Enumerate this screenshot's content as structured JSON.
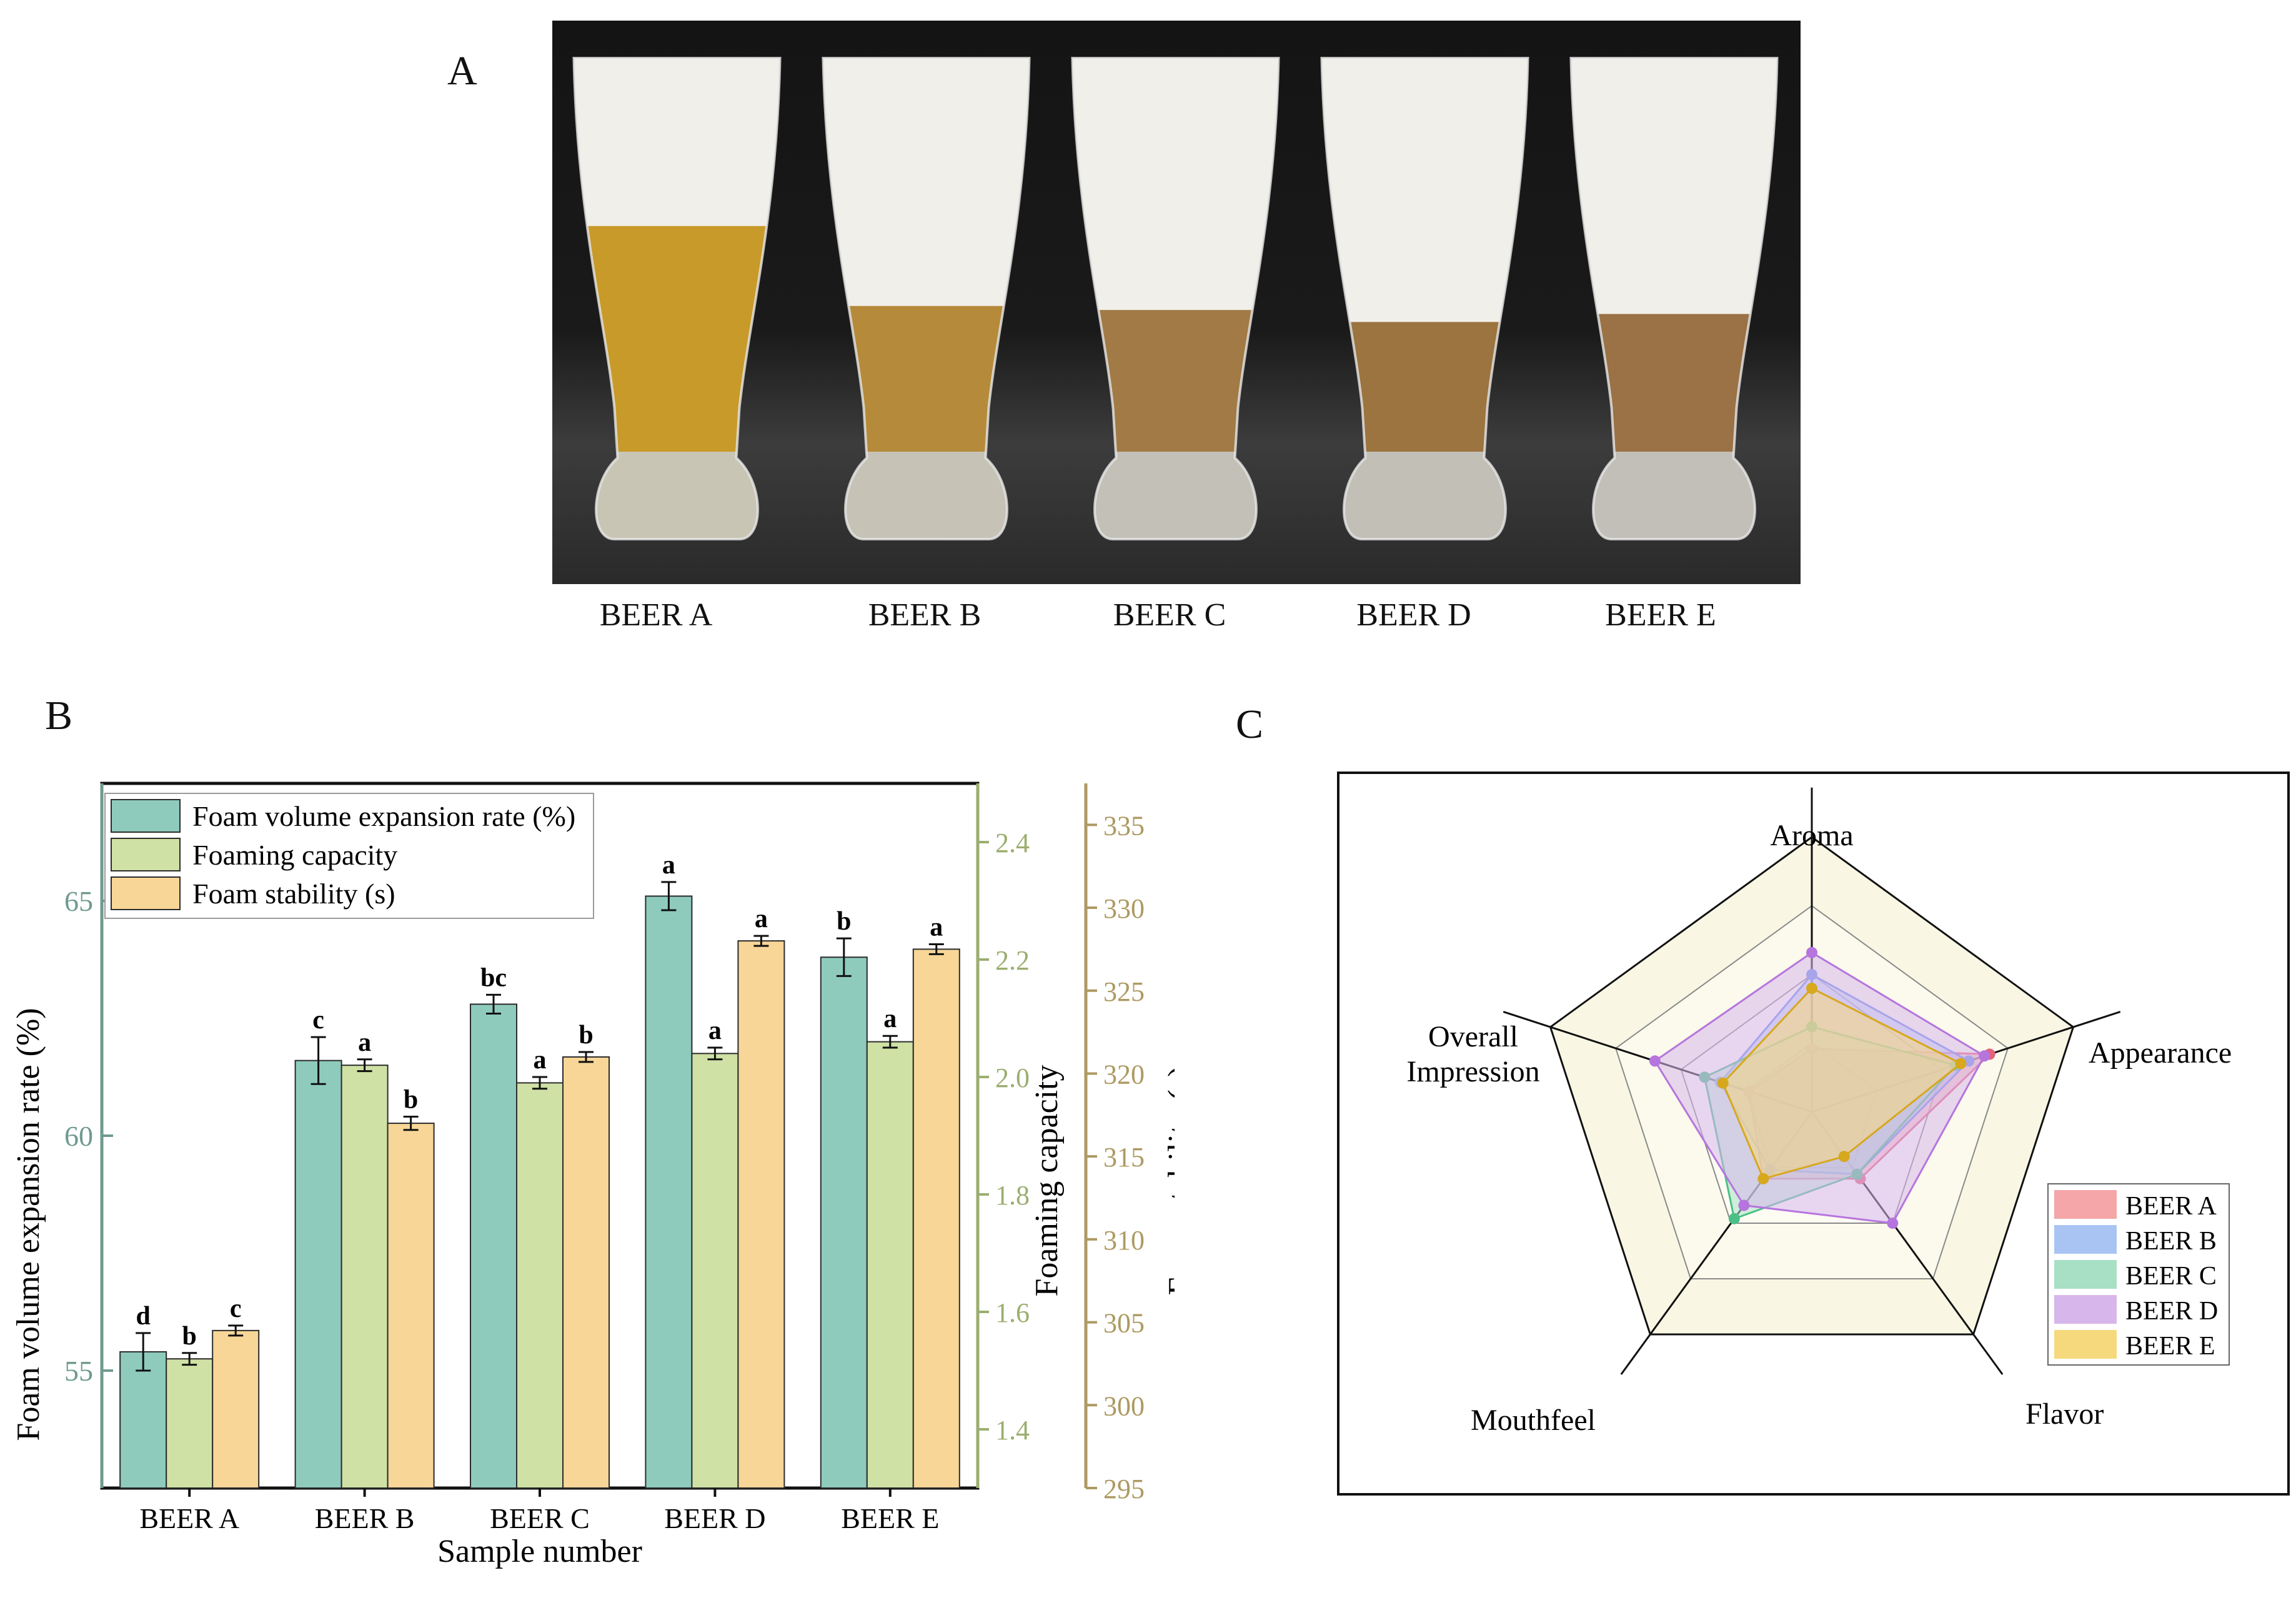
{
  "panels": {
    "a": "A",
    "b": "B",
    "c": "C"
  },
  "photo": {
    "labels": [
      "BEER A",
      "BEER B",
      "BEER C",
      "BEER D",
      "BEER E"
    ],
    "foam_fraction": [
      0.42,
      0.62,
      0.63,
      0.66,
      0.64
    ]
  },
  "chart_data": [
    {
      "type": "bar",
      "title": "",
      "xlabel": "Sample number",
      "ylabel": "Foam volume expansion rate (%)",
      "categories": [
        "BEER A",
        "BEER B",
        "BEER C",
        "BEER D",
        "BEER E"
      ],
      "axes": {
        "left": {
          "label": "Foam volume expansion rate (%)",
          "ylim": [
            52.5,
            67.5
          ],
          "ticks": [
            55,
            60,
            65
          ],
          "color": "#6f9a8f"
        },
        "right1": {
          "label": "Foaming capacity",
          "ylim": [
            1.3,
            2.5
          ],
          "ticks": [
            "1.4",
            "1.6",
            "1.8",
            "2.0",
            "2.2",
            "2.4"
          ],
          "color": "#9bae6f"
        },
        "right2": {
          "label": "Foam stability (s)",
          "ylim": [
            295,
            337.5
          ],
          "ticks": [
            295,
            300,
            305,
            310,
            315,
            320,
            325,
            330,
            335
          ],
          "color": "#ad9a62"
        }
      },
      "series": [
        {
          "name": "Foam volume expansion rate (%)",
          "axis": "left",
          "color": "#8ecbbd",
          "values": [
            55.4,
            61.6,
            62.8,
            65.1,
            63.8
          ],
          "errors": [
            0.4,
            0.5,
            0.2,
            0.3,
            0.4
          ],
          "letters": [
            "d",
            "c",
            "bc",
            "a",
            "b"
          ]
        },
        {
          "name": "Foaming capacity",
          "axis": "right1",
          "color": "#cfe1a4",
          "values": [
            1.52,
            2.02,
            1.99,
            2.04,
            2.06
          ],
          "errors": [
            0.01,
            0.01,
            0.01,
            0.01,
            0.01
          ],
          "letters": [
            "b",
            "a",
            "a",
            "a",
            "a"
          ]
        },
        {
          "name": "Foam stability (s)",
          "axis": "right2",
          "color": "#f7d697",
          "values": [
            304.5,
            317.0,
            321.0,
            328.0,
            327.5
          ],
          "errors": [
            0.3,
            0.4,
            0.3,
            0.3,
            0.3
          ],
          "letters": [
            "c",
            "b",
            "b",
            "a",
            "a"
          ]
        }
      ],
      "legend": "top-left"
    },
    {
      "type": "radar",
      "axes": [
        "Aroma",
        "Appearance",
        "Flavor",
        "Mouthfeel",
        "Overall\nImpression"
      ],
      "axis_labels": [
        "Aroma",
        "Appearance",
        "Flavor",
        "Mouthfeel",
        "Overall",
        "Impression"
      ],
      "rmax": 10,
      "rings": 4,
      "series": [
        {
          "name": "BEER A",
          "color": "#f4a6a8",
          "line": "#e2637c",
          "values": [
            2.3,
            6.8,
            3.0,
            3.0,
            2.4
          ]
        },
        {
          "name": "BEER B",
          "color": "#a9c4f2",
          "line": "#6f8fe6",
          "values": [
            5.0,
            6.0,
            2.8,
            2.6,
            3.5
          ]
        },
        {
          "name": "BEER C",
          "color": "#a7e0c5",
          "line": "#4cbf86",
          "values": [
            3.1,
            5.5,
            2.8,
            4.8,
            4.1
          ]
        },
        {
          "name": "BEER D",
          "color": "#d7b6ec",
          "line": "#b675de",
          "values": [
            5.8,
            6.6,
            5.0,
            4.2,
            6.0
          ]
        },
        {
          "name": "BEER E",
          "color": "#f7d97d",
          "line": "#d7a81e",
          "values": [
            4.5,
            5.7,
            2.0,
            3.0,
            3.4
          ]
        }
      ],
      "legend": "right"
    }
  ]
}
